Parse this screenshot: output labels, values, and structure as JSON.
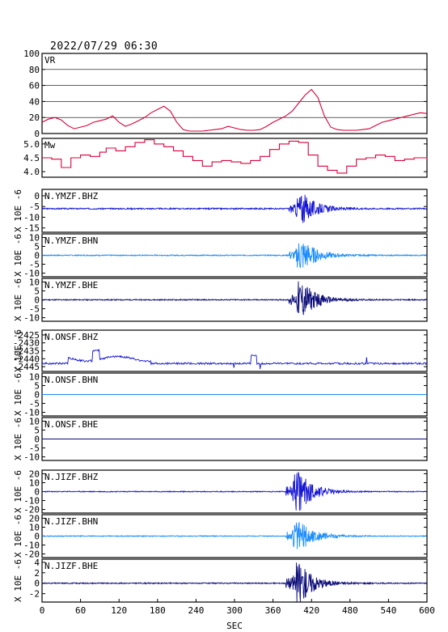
{
  "header": {
    "timestamp": "2022/07/29 06:30"
  },
  "chart_data": {
    "type": "line",
    "xlabel": "SEC",
    "xlim": [
      0,
      600
    ],
    "x_ticks": [
      "0",
      "60",
      "120",
      "180",
      "240",
      "300",
      "360",
      "420",
      "480",
      "540",
      "600"
    ],
    "panels": [
      {
        "label": "VR",
        "kind": "vr",
        "ylabel": "",
        "yticks": [
          "100",
          "80",
          "60",
          "40",
          "20",
          "0"
        ],
        "ylim": [
          0,
          100
        ],
        "color": "#d8003a",
        "x": [
          0,
          10,
          20,
          30,
          40,
          50,
          60,
          70,
          80,
          90,
          100,
          110,
          120,
          130,
          140,
          150,
          160,
          170,
          180,
          190,
          200,
          210,
          220,
          230,
          240,
          250,
          260,
          270,
          280,
          290,
          300,
          310,
          320,
          330,
          340,
          350,
          360,
          370,
          380,
          390,
          400,
          410,
          420,
          430,
          440,
          450,
          460,
          470,
          480,
          490,
          500,
          510,
          520,
          530,
          540,
          550,
          560,
          570,
          580,
          590,
          600
        ],
        "y": [
          14,
          18,
          20,
          17,
          10,
          6,
          8,
          10,
          14,
          16,
          18,
          22,
          14,
          9,
          12,
          16,
          20,
          26,
          30,
          34,
          28,
          14,
          5,
          3,
          3,
          3,
          4,
          5,
          6,
          9,
          7,
          5,
          4,
          4,
          5,
          9,
          14,
          18,
          22,
          28,
          38,
          48,
          55,
          45,
          22,
          8,
          5,
          4,
          4,
          4,
          5,
          6,
          10,
          14,
          16,
          18,
          20,
          22,
          24,
          26,
          25
        ]
      },
      {
        "label": "Mw",
        "kind": "mw",
        "ylabel": "",
        "yticks": [
          "5.0",
          "4.5",
          "4.0"
        ],
        "ylim": [
          3.8,
          5.2
        ],
        "color": "#d8003a",
        "x": [
          0,
          15,
          30,
          45,
          60,
          75,
          90,
          100,
          115,
          130,
          145,
          160,
          175,
          190,
          205,
          220,
          235,
          250,
          265,
          280,
          295,
          310,
          325,
          340,
          355,
          370,
          385,
          400,
          415,
          430,
          445,
          460,
          475,
          490,
          505,
          520,
          535,
          550,
          565,
          580,
          600
        ],
        "y": [
          4.5,
          4.45,
          4.15,
          4.5,
          4.6,
          4.55,
          4.7,
          4.85,
          4.75,
          4.9,
          5.05,
          5.15,
          5.0,
          4.9,
          4.75,
          4.55,
          4.4,
          4.2,
          4.35,
          4.4,
          4.35,
          4.3,
          4.4,
          4.55,
          4.8,
          5.0,
          5.1,
          5.05,
          4.6,
          4.2,
          4.05,
          3.95,
          4.2,
          4.45,
          4.5,
          4.6,
          4.55,
          4.4,
          4.45,
          4.5,
          4.45
        ]
      },
      {
        "label": "N.YMZF.BHZ",
        "kind": "wave",
        "ylabel": "X 10E -6",
        "yticks": [
          "0",
          "-5",
          "-10",
          "-15"
        ],
        "ylim": [
          -17,
          3
        ],
        "baseline": -6,
        "amp": 7,
        "noise": 0.3,
        "onset": 395,
        "color": "#1414d2",
        "seed": 3
      },
      {
        "label": "N.YMZF.BHN",
        "kind": "wave",
        "ylabel": "X 10E -6",
        "yticks": [
          "10",
          "5",
          "0",
          "-5",
          "-10"
        ],
        "ylim": [
          -12,
          12
        ],
        "baseline": 0,
        "amp": 9,
        "noise": 0.3,
        "onset": 395,
        "color": "#1a8cff",
        "seed": 7
      },
      {
        "label": "N.YMZF.BHE",
        "kind": "wave",
        "ylabel": "X 10E -6",
        "yticks": [
          "10",
          "5",
          "0",
          "-5",
          "-10"
        ],
        "ylim": [
          -12,
          12
        ],
        "baseline": 0,
        "amp": 10,
        "noise": 0.3,
        "onset": 395,
        "color": "#0a0a78",
        "seed": 11
      },
      {
        "label": "N.ONSF.BHZ",
        "kind": "spiky",
        "ylabel": "X 10E -6",
        "yticks": [
          "-2425",
          "-2430",
          "-2435",
          "-2440",
          "-2445"
        ],
        "ylim": [
          -2448,
          -2422
        ],
        "baseline": -2443,
        "color": "#1414d2",
        "seed": 19
      },
      {
        "label": "N.ONSF.BHN",
        "kind": "flat",
        "ylabel": "X 10E -6",
        "yticks": [
          "10",
          "5",
          "0",
          "-5",
          "-10"
        ],
        "ylim": [
          -12,
          12
        ],
        "baseline": 0,
        "color": "#1a8cff"
      },
      {
        "label": "N.ONSF.BHE",
        "kind": "flat",
        "ylabel": "X 10E -6",
        "yticks": [
          "10",
          "5",
          "0",
          "-5",
          "-10"
        ],
        "ylim": [
          -12,
          12
        ],
        "baseline": 0,
        "color": "#0a0a78"
      },
      {
        "label": "N.JIZF.BHZ",
        "kind": "wave",
        "ylabel": "X 10E -6",
        "yticks": [
          "20",
          "10",
          "0",
          "-10",
          "-20"
        ],
        "ylim": [
          -24,
          24
        ],
        "baseline": 0,
        "amp": 22,
        "noise": 0.5,
        "onset": 390,
        "color": "#1414d2",
        "seed": 23
      },
      {
        "label": "N.JIZF.BHN",
        "kind": "wave",
        "ylabel": "X 10E -6",
        "yticks": [
          "20",
          "10",
          "0",
          "-10",
          "-20"
        ],
        "ylim": [
          -24,
          24
        ],
        "baseline": 0,
        "amp": 18,
        "noise": 0.5,
        "onset": 390,
        "color": "#1a8cff",
        "seed": 29
      },
      {
        "label": "N.JIZF.BHE",
        "kind": "wave",
        "ylabel": "X 10E -6",
        "yticks": [
          "4",
          "2",
          "0",
          "-2"
        ],
        "ylim": [
          -3.6,
          4.6
        ],
        "baseline": 0,
        "amp": 4,
        "noise": 0.1,
        "onset": 390,
        "color": "#0a0a78",
        "seed": 31
      }
    ]
  }
}
